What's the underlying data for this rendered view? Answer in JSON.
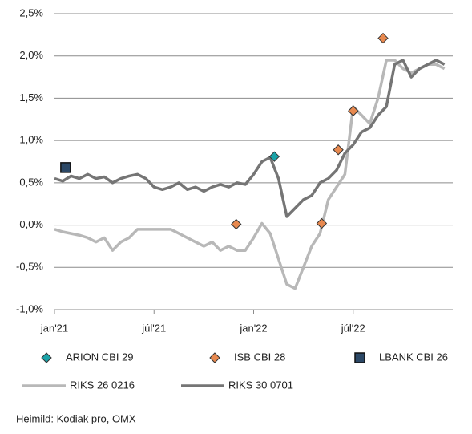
{
  "chart_data": {
    "type": "line",
    "source": "Heimild: Kodiak pro, OMX",
    "xlim": [
      0,
      24
    ],
    "xticks": [
      {
        "value": 0,
        "label": "jan'21"
      },
      {
        "value": 6,
        "label": "júl'21"
      },
      {
        "value": 12,
        "label": "jan'22"
      },
      {
        "value": 18,
        "label": "júl'22"
      }
    ],
    "ylim": [
      -1.0,
      2.5
    ],
    "yticks": [
      {
        "value": -1.0,
        "label": "-1,0%"
      },
      {
        "value": -0.5,
        "label": "-0,5%"
      },
      {
        "value": 0,
        "label": "0,0%"
      },
      {
        "value": 0.5,
        "label": "0,5%"
      },
      {
        "value": 1.0,
        "label": "1,0%"
      },
      {
        "value": 1.5,
        "label": "1,5%"
      },
      {
        "value": 2.0,
        "label": "2,0%"
      },
      {
        "value": 2.5,
        "label": "2,5%"
      }
    ],
    "grid": true,
    "x": [
      0,
      0.5,
      1,
      1.5,
      2,
      2.5,
      3,
      3.5,
      4,
      4.5,
      5,
      5.5,
      6,
      6.5,
      7,
      7.5,
      8,
      8.5,
      9,
      9.5,
      10,
      10.5,
      11,
      11.5,
      12,
      12.5,
      13,
      13.5,
      14,
      14.5,
      15,
      15.5,
      16,
      16.5,
      17,
      17.5,
      18,
      18.5,
      19,
      19.5,
      20,
      20.5,
      21,
      21.5,
      22,
      22.5,
      23,
      23.5
    ],
    "series": [
      {
        "name": "ARION CBI 29",
        "kind": "scatter",
        "marker": "diamond",
        "color": "#1aa3a8",
        "x": [
          13.25
        ],
        "values": [
          0.81
        ]
      },
      {
        "name": "ISB CBI 28",
        "kind": "scatter",
        "marker": "diamond",
        "color": "#e8894f",
        "x": [
          10.95,
          16.1,
          17.1,
          18.0,
          19.8
        ],
        "values": [
          0.01,
          0.02,
          0.89,
          1.35,
          2.21
        ]
      },
      {
        "name": "LBANK CBI 26",
        "kind": "scatter",
        "marker": "square",
        "color": "#2c4866",
        "x": [
          0.67
        ],
        "values": [
          0.68
        ]
      },
      {
        "name": "RIKS 26 0216",
        "kind": "line",
        "color": "#b8b8b8",
        "values": [
          -0.05,
          -0.08,
          -0.1,
          -0.12,
          -0.15,
          -0.2,
          -0.15,
          -0.3,
          -0.2,
          -0.15,
          -0.05,
          -0.05,
          -0.05,
          -0.05,
          -0.05,
          -0.1,
          -0.15,
          -0.2,
          -0.25,
          -0.2,
          -0.3,
          -0.25,
          -0.3,
          -0.3,
          -0.15,
          0.02,
          -0.1,
          -0.4,
          -0.7,
          -0.75,
          -0.5,
          -0.25,
          -0.1,
          0.3,
          0.45,
          0.6,
          1.4,
          1.3,
          1.2,
          1.5,
          1.95,
          1.95,
          1.85,
          1.8,
          1.85,
          1.9,
          1.9,
          1.85
        ]
      },
      {
        "name": "RIKS 30 0701",
        "kind": "line",
        "color": "#757575",
        "values": [
          0.55,
          0.52,
          0.58,
          0.55,
          0.6,
          0.55,
          0.57,
          0.5,
          0.55,
          0.58,
          0.6,
          0.55,
          0.45,
          0.42,
          0.45,
          0.5,
          0.42,
          0.45,
          0.4,
          0.45,
          0.48,
          0.45,
          0.5,
          0.48,
          0.6,
          0.75,
          0.8,
          0.55,
          0.1,
          0.2,
          0.3,
          0.35,
          0.5,
          0.55,
          0.65,
          0.85,
          0.95,
          1.1,
          1.15,
          1.3,
          1.4,
          1.9,
          1.95,
          1.75,
          1.85,
          1.9,
          1.95,
          1.9
        ]
      }
    ]
  }
}
